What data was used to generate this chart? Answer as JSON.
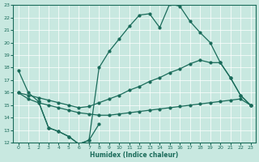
{
  "xlabel": "Humidex (Indice chaleur)",
  "bg_color": "#c8e8e0",
  "line_color": "#1a6b5a",
  "grid_color": "#ffffff",
  "xlim": [
    -0.5,
    23.5
  ],
  "ylim": [
    12,
    23
  ],
  "xticks": [
    0,
    1,
    2,
    3,
    4,
    5,
    6,
    7,
    8,
    9,
    10,
    11,
    12,
    13,
    14,
    15,
    16,
    17,
    18,
    19,
    20,
    21,
    22,
    23
  ],
  "yticks": [
    12,
    13,
    14,
    15,
    16,
    17,
    18,
    19,
    20,
    21,
    22,
    23
  ],
  "line1_x": [
    0,
    1,
    2,
    3,
    4,
    5,
    6,
    7,
    8,
    9,
    10,
    11,
    12,
    13,
    14,
    15,
    16,
    17,
    18,
    19,
    20,
    21,
    22,
    23
  ],
  "line1_y": [
    17.8,
    16.0,
    15.3,
    13.2,
    12.9,
    12.5,
    11.9,
    12.2,
    18.0,
    19.3,
    20.3,
    21.3,
    22.2,
    22.3,
    21.2,
    23.1,
    22.9,
    21.7,
    20.8,
    20.0,
    18.4,
    17.2,
    15.8,
    15.0
  ],
  "line2_x": [
    0,
    1,
    2,
    3,
    4,
    5,
    6,
    7,
    8,
    9,
    10,
    11,
    12,
    13,
    14,
    15,
    16,
    17,
    18,
    19,
    20,
    21,
    22,
    23
  ],
  "line2_y": [
    16.0,
    15.8,
    15.6,
    15.4,
    15.2,
    15.0,
    14.8,
    14.9,
    15.2,
    15.5,
    15.8,
    16.2,
    16.5,
    16.9,
    17.2,
    17.6,
    17.9,
    18.3,
    18.6,
    18.4,
    18.4,
    17.2,
    15.8,
    15.0
  ],
  "line3_x": [
    0,
    1,
    2,
    3,
    4,
    5,
    6,
    7,
    8,
    9,
    10,
    11,
    12,
    13,
    14,
    15,
    16,
    17,
    18,
    19,
    20,
    21,
    22,
    23
  ],
  "line3_y": [
    16.0,
    15.5,
    15.2,
    15.0,
    14.8,
    14.6,
    14.4,
    14.3,
    14.2,
    14.2,
    14.3,
    14.4,
    14.5,
    14.6,
    14.7,
    14.8,
    14.9,
    15.0,
    15.1,
    15.2,
    15.3,
    15.4,
    15.5,
    15.0
  ],
  "line4_x": [
    2,
    3,
    4,
    5,
    6,
    7,
    8
  ],
  "line4_y": [
    15.3,
    13.2,
    12.9,
    12.5,
    11.9,
    12.2,
    13.5
  ]
}
